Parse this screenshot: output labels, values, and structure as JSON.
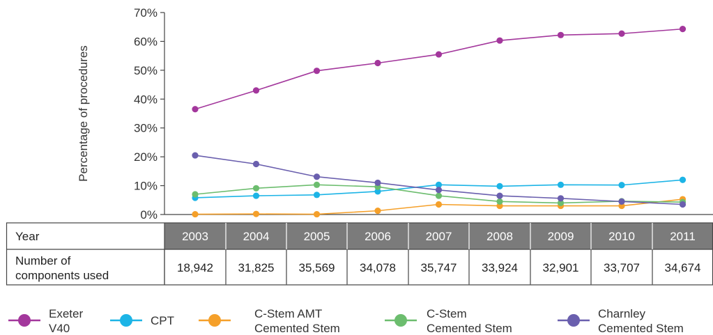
{
  "chart_data": {
    "type": "line",
    "title": "",
    "xlabel": "",
    "ylabel": "Percentage of procedures",
    "ylim": [
      0,
      70
    ],
    "yticks": [
      "0%",
      "10%",
      "20%",
      "30%",
      "40%",
      "50%",
      "60%",
      "70%"
    ],
    "categories": [
      "2003",
      "2004",
      "2005",
      "2006",
      "2007",
      "2008",
      "2009",
      "2010",
      "2011"
    ],
    "grid": false,
    "legend_position": "bottom",
    "series": [
      {
        "name": "Exeter V40",
        "name_lines": [
          "Exeter",
          "V40"
        ],
        "color": "#a3379c",
        "values": [
          36.5,
          43.0,
          49.8,
          52.5,
          55.5,
          60.3,
          62.2,
          62.7,
          64.3
        ]
      },
      {
        "name": "CPT",
        "name_lines": [
          "CPT"
        ],
        "color": "#1cb4e6",
        "values": [
          5.8,
          6.5,
          6.8,
          8.0,
          10.3,
          9.8,
          10.3,
          10.2,
          12.0
        ]
      },
      {
        "name": "C-Stem AMT Cemented Stem",
        "name_lines": [
          "C-Stem AMT",
          "Cemented Stem"
        ],
        "color": "#f5a02a",
        "values": [
          0.1,
          0.2,
          0.1,
          1.3,
          3.5,
          3.0,
          3.0,
          3.0,
          5.3
        ]
      },
      {
        "name": "C-Stem Cemented Stem",
        "name_lines": [
          "C-Stem",
          "Cemented Stem"
        ],
        "color": "#6cbd6e",
        "values": [
          7.0,
          9.1,
          10.3,
          9.6,
          6.5,
          4.5,
          4.0,
          4.6,
          4.3
        ]
      },
      {
        "name": "Charnley Cemented Stem",
        "name_lines": [
          "Charnley",
          "Cemented Stem"
        ],
        "color": "#6a5fae",
        "values": [
          20.5,
          17.5,
          13.1,
          11.0,
          8.5,
          6.5,
          5.6,
          4.5,
          3.5
        ]
      }
    ]
  },
  "table": {
    "row1_label": "Year",
    "row2_label_lines": [
      "Number of",
      "components used"
    ],
    "counts": [
      "18,942",
      "31,825",
      "35,569",
      "34,078",
      "35,747",
      "33,924",
      "32,901",
      "33,707",
      "34,674"
    ]
  }
}
